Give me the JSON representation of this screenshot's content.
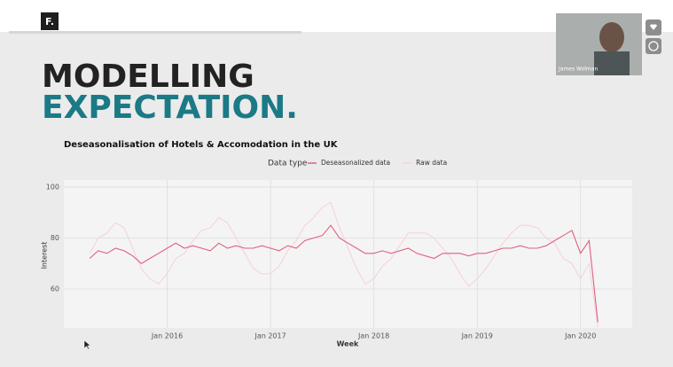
{
  "slide": {
    "logo": "F.",
    "title_line1": "MODELLING",
    "title_line2": "EXPECTATION."
  },
  "overlay": {
    "participant_name": "James Wolman"
  },
  "chart_data": {
    "type": "line",
    "title": "Deseasonalisation of Hotels & Accomodation in the UK",
    "legend_title": "Data type",
    "x_label": "Week",
    "y_label": "Interest",
    "x": [
      "2015-04",
      "2015-05",
      "2015-06",
      "2015-07",
      "2015-08",
      "2015-09",
      "2015-10",
      "2015-11",
      "2015-12",
      "2016-01",
      "2016-02",
      "2016-03",
      "2016-04",
      "2016-05",
      "2016-06",
      "2016-07",
      "2016-08",
      "2016-09",
      "2016-10",
      "2016-11",
      "2016-12",
      "2017-01",
      "2017-02",
      "2017-03",
      "2017-04",
      "2017-05",
      "2017-06",
      "2017-07",
      "2017-08",
      "2017-09",
      "2017-10",
      "2017-11",
      "2017-12",
      "2018-01",
      "2018-02",
      "2018-03",
      "2018-04",
      "2018-05",
      "2018-06",
      "2018-07",
      "2018-08",
      "2018-09",
      "2018-10",
      "2018-11",
      "2018-12",
      "2019-01",
      "2019-02",
      "2019-03",
      "2019-04",
      "2019-05",
      "2019-06",
      "2019-07",
      "2019-08",
      "2019-09",
      "2019-10",
      "2019-11",
      "2019-12",
      "2020-01",
      "2020-02",
      "2020-03"
    ],
    "series": [
      {
        "name": "Deseasonalized data",
        "color": "#e0607e",
        "values": [
          72,
          75,
          74,
          76,
          75,
          73,
          70,
          72,
          74,
          76,
          78,
          76,
          77,
          76,
          75,
          78,
          76,
          77,
          76,
          76,
          77,
          76,
          75,
          77,
          76,
          79,
          80,
          81,
          85,
          80,
          78,
          76,
          74,
          74,
          75,
          74,
          75,
          76,
          74,
          73,
          72,
          74,
          74,
          74,
          73,
          74,
          74,
          75,
          76,
          76,
          77,
          76,
          76,
          77,
          79,
          81,
          83,
          74,
          79,
          47
        ]
      },
      {
        "name": "Raw data",
        "color": "#f6d3da",
        "values": [
          74,
          80,
          82,
          86,
          84,
          76,
          68,
          64,
          62,
          66,
          72,
          74,
          79,
          83,
          84,
          88,
          86,
          80,
          74,
          68,
          66,
          66,
          69,
          75,
          79,
          85,
          88,
          92,
          94,
          84,
          76,
          68,
          62,
          64,
          69,
          72,
          77,
          82,
          82,
          82,
          80,
          76,
          72,
          66,
          61,
          64,
          68,
          73,
          78,
          82,
          85,
          85,
          84,
          80,
          78,
          72,
          70,
          64,
          70,
          45
        ]
      }
    ],
    "xlim": [
      "2015-01",
      "2020-07"
    ],
    "xticks": [
      {
        "value": "2016-01",
        "label": "Jan 2016"
      },
      {
        "value": "2017-01",
        "label": "Jan 2017"
      },
      {
        "value": "2018-01",
        "label": "Jan 2018"
      },
      {
        "value": "2019-01",
        "label": "Jan 2019"
      },
      {
        "value": "2020-01",
        "label": "Jan 2020"
      }
    ],
    "ylim": [
      44.7,
      102.8
    ],
    "yticks": [
      60,
      80,
      100
    ],
    "grid": true
  }
}
